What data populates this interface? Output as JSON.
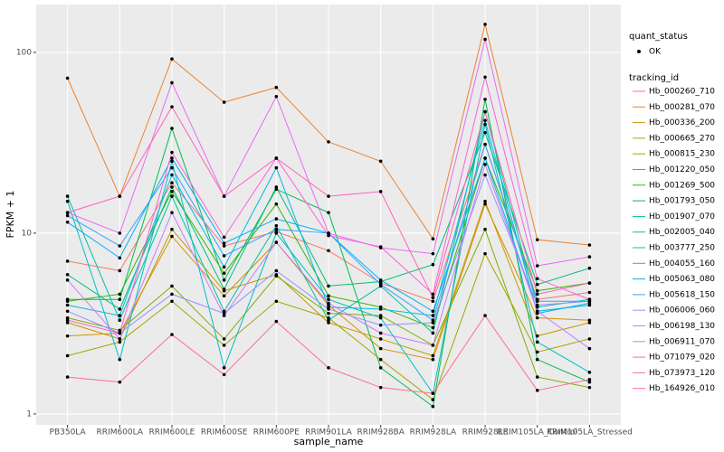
{
  "chart_data": {
    "type": "line",
    "x_label": "sample_name",
    "y_label": "FPKM + 1",
    "log_y": true,
    "grid": true,
    "point_color": "#000000",
    "categories": [
      "PB350LA",
      "RRIM600LA",
      "RRIM600LE",
      "RRIM600SE",
      "RRIM600PE",
      "RRIM901LA",
      "RRIM928BA",
      "RRIM928LA",
      "RRIM928LE",
      "RRIM105LA_Control",
      "RRIM105LA_Stressed"
    ],
    "ylim": [
      0.87,
      184
    ],
    "yticks": [
      1,
      10,
      100
    ],
    "legend_position": "right",
    "shape_legend": {
      "title": "quant_status",
      "labels": [
        "OK"
      ]
    },
    "color_legend_title": "tracking_id",
    "series": [
      {
        "name": "Hb_000260_710",
        "color": "#F8766D",
        "values": [
          7.0,
          6.2,
          19,
          8.5,
          10.2,
          8.0,
          5.3,
          4.2,
          31,
          4.3,
          4.7
        ]
      },
      {
        "name": "Hb_000281_070",
        "color": "#EA8331",
        "values": [
          72,
          16,
          92,
          53,
          64,
          32,
          25,
          9.3,
          143,
          9.2,
          8.6
        ]
      },
      {
        "name": "Hb_000336_200",
        "color": "#D89000",
        "values": [
          2.7,
          2.8,
          9.6,
          4.5,
          8.9,
          4.0,
          2.3,
          2.0,
          14.5,
          3.4,
          3.3
        ]
      },
      {
        "name": "Hb_000665_270",
        "color": "#C09B00",
        "values": [
          3.2,
          2.6,
          10.5,
          4.8,
          5.9,
          3.2,
          2.6,
          2.1,
          15,
          2.7,
          3.2
        ]
      },
      {
        "name": "Hb_000815_230",
        "color": "#A3A500",
        "values": [
          2.1,
          2.5,
          4.2,
          2.4,
          4.2,
          3.4,
          2.0,
          1.2,
          7.7,
          2.2,
          2.6
        ]
      },
      {
        "name": "Hb_001220_050",
        "color": "#7CAE00",
        "values": [
          3.4,
          2.9,
          5.1,
          2.6,
          5.8,
          3.6,
          3.5,
          2.4,
          10.5,
          1.6,
          1.4
        ]
      },
      {
        "name": "Hb_001269_500",
        "color": "#39B600",
        "values": [
          4.2,
          4.6,
          17,
          6.0,
          14.5,
          4.5,
          3.9,
          3.0,
          26,
          4.8,
          5.3
        ]
      },
      {
        "name": "Hb_001793_050",
        "color": "#00BB4E",
        "values": [
          4.3,
          4.3,
          38,
          5.5,
          17.5,
          13,
          1.8,
          1.1,
          55,
          2.0,
          1.5
        ]
      },
      {
        "name": "Hb_001907_070",
        "color": "#00BF7D",
        "values": [
          5.9,
          3.8,
          18,
          4.9,
          18,
          5.1,
          5.4,
          6.7,
          36,
          5.2,
          6.4
        ]
      },
      {
        "name": "Hb_002005_040",
        "color": "#00C1A3",
        "values": [
          16,
          3.3,
          16,
          3.7,
          11,
          3.3,
          5.1,
          2.8,
          47,
          3.9,
          4.3
        ]
      },
      {
        "name": "Hb_003777_250",
        "color": "#00BFC4",
        "values": [
          15,
          2.0,
          25,
          1.8,
          10,
          4.3,
          3.4,
          1.3,
          40,
          2.5,
          1.7
        ]
      },
      {
        "name": "Hb_004055_160",
        "color": "#00BAE0",
        "values": [
          4.0,
          3.5,
          21,
          6.5,
          23,
          3.9,
          3.8,
          3.5,
          42,
          3.6,
          4.1
        ]
      },
      {
        "name": "Hb_005063_080",
        "color": "#00B0F6",
        "values": [
          11.5,
          7.3,
          26,
          8.8,
          12,
          10,
          5.5,
          3.7,
          26,
          3.7,
          4.0
        ]
      },
      {
        "name": "Hb_005618_150",
        "color": "#35A2FF",
        "values": [
          12.5,
          8.5,
          23,
          7.5,
          10.5,
          10,
          5.2,
          3.3,
          31,
          4.2,
          4.2
        ]
      },
      {
        "name": "Hb_006006_060",
        "color": "#9590FF",
        "values": [
          3.7,
          2.8,
          4.6,
          3.6,
          6.2,
          3.8,
          3.1,
          3.2,
          21,
          4.0,
          4.2
        ]
      },
      {
        "name": "Hb_006198_130",
        "color": "#C77CFF",
        "values": [
          5.5,
          2.6,
          13,
          3.5,
          8.9,
          4.1,
          2.8,
          2.4,
          24,
          3.7,
          2.3
        ]
      },
      {
        "name": "Hb_006911_070",
        "color": "#E76BF3",
        "values": [
          13,
          10,
          68,
          16,
          57,
          10,
          8.3,
          7.7,
          118,
          6.6,
          7.4
        ]
      },
      {
        "name": "Hb_071079_020",
        "color": "#FA62DB",
        "values": [
          3.3,
          2.8,
          28,
          9.5,
          26,
          9.7,
          8.4,
          4.6,
          73,
          5.6,
          4.3
        ]
      },
      {
        "name": "Hb_073973_120",
        "color": "#FF62BC",
        "values": [
          13,
          16,
          50,
          16,
          26,
          16,
          17,
          4.4,
          47,
          4.6,
          5.3
        ]
      },
      {
        "name": "Hb_164926_010",
        "color": "#FF6C91",
        "values": [
          1.6,
          1.5,
          2.75,
          1.65,
          3.25,
          1.8,
          1.4,
          1.3,
          3.5,
          1.35,
          1.55
        ]
      }
    ]
  }
}
